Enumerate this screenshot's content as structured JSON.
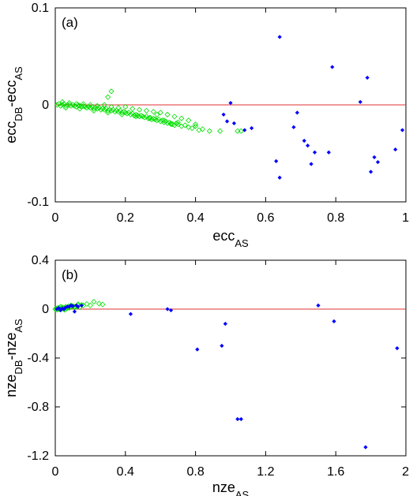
{
  "chart_data": [
    {
      "type": "scatter",
      "panel_label": "(a)",
      "xlabel": {
        "base": "ecc",
        "sub": "AS"
      },
      "ylabel": {
        "parts": [
          {
            "base": "ecc",
            "sub": "DB"
          },
          {
            "base": "-ecc",
            "sub": "AS"
          }
        ]
      },
      "xlim": [
        0,
        1
      ],
      "ylim": [
        -0.1,
        0.1
      ],
      "xticks": [
        0,
        0.2,
        0.4,
        0.6,
        0.8,
        1
      ],
      "xtick_labels": [
        "0",
        "0.2",
        "0.4",
        "0.6",
        "0.8",
        "1"
      ],
      "yticks": [
        -0.1,
        0,
        0.1
      ],
      "ytick_labels": [
        "-0.1",
        "0",
        "0.1"
      ],
      "reference_line_y": 0,
      "reference_color": "#e03030",
      "series": [
        {
          "color": "#00e000",
          "marker": "open-diamond",
          "x": [
            0.005,
            0.01,
            0.015,
            0.02,
            0.025,
            0.03,
            0.035,
            0.04,
            0.045,
            0.05,
            0.055,
            0.06,
            0.065,
            0.07,
            0.075,
            0.08,
            0.085,
            0.09,
            0.095,
            0.1,
            0.105,
            0.11,
            0.115,
            0.12,
            0.125,
            0.13,
            0.135,
            0.14,
            0.145,
            0.15,
            0.155,
            0.16,
            0.165,
            0.17,
            0.175,
            0.18,
            0.185,
            0.19,
            0.195,
            0.2,
            0.205,
            0.21,
            0.215,
            0.22,
            0.225,
            0.23,
            0.235,
            0.24,
            0.245,
            0.25,
            0.255,
            0.26,
            0.265,
            0.27,
            0.275,
            0.28,
            0.285,
            0.29,
            0.295,
            0.3,
            0.305,
            0.31,
            0.315,
            0.32,
            0.325,
            0.33,
            0.335,
            0.34,
            0.345,
            0.35,
            0.36,
            0.37,
            0.38,
            0.39,
            0.4,
            0.41,
            0.42,
            0.44,
            0.02,
            0.04,
            0.06,
            0.08,
            0.1,
            0.12,
            0.14,
            0.16,
            0.18,
            0.2,
            0.22,
            0.24,
            0.26,
            0.28,
            0.3,
            0.32,
            0.34,
            0.36,
            0.38,
            0.4,
            0.03,
            0.07,
            0.11,
            0.15,
            0.19,
            0.23,
            0.27,
            0.31,
            0.35,
            0.16,
            0.15,
            0.29,
            0.33,
            0.47,
            0.52,
            0.53
          ],
          "y": [
            0.0,
            0.001,
            -0.001,
            0.0,
            0.001,
            -0.001,
            0.0,
            0.0,
            -0.001,
            0.0,
            -0.001,
            -0.002,
            0.0,
            -0.001,
            -0.002,
            -0.001,
            -0.002,
            -0.003,
            -0.002,
            -0.003,
            -0.002,
            -0.004,
            -0.003,
            -0.004,
            -0.003,
            -0.005,
            -0.004,
            -0.005,
            -0.004,
            -0.006,
            -0.005,
            -0.006,
            -0.005,
            -0.007,
            -0.006,
            -0.007,
            -0.006,
            -0.008,
            -0.007,
            -0.008,
            -0.009,
            -0.008,
            -0.01,
            -0.009,
            -0.011,
            -0.01,
            -0.011,
            -0.012,
            -0.011,
            -0.012,
            -0.013,
            -0.012,
            -0.014,
            -0.013,
            -0.015,
            -0.014,
            -0.015,
            -0.016,
            -0.015,
            -0.017,
            -0.016,
            -0.018,
            -0.017,
            -0.019,
            -0.018,
            -0.019,
            -0.02,
            -0.021,
            -0.019,
            -0.02,
            -0.022,
            -0.021,
            -0.023,
            -0.024,
            -0.022,
            -0.026,
            -0.025,
            -0.027,
            0.003,
            0.002,
            0.001,
            0.001,
            0.0,
            -0.001,
            0.0,
            -0.002,
            -0.003,
            -0.002,
            -0.004,
            -0.005,
            -0.006,
            -0.007,
            -0.008,
            -0.01,
            -0.012,
            -0.014,
            -0.016,
            -0.02,
            -0.003,
            -0.004,
            -0.006,
            -0.008,
            -0.01,
            -0.012,
            -0.014,
            -0.016,
            -0.018,
            0.014,
            0.008,
            -0.01,
            -0.02,
            -0.027,
            -0.027,
            -0.027
          ]
        },
        {
          "color": "#0000ff",
          "marker": "filled-diamond",
          "x": [
            0.48,
            0.49,
            0.5,
            0.51,
            0.54,
            0.56,
            0.63,
            0.64,
            0.64,
            0.68,
            0.69,
            0.71,
            0.72,
            0.73,
            0.74,
            0.78,
            0.79,
            0.87,
            0.89,
            0.9,
            0.91,
            0.92,
            0.97,
            0.99
          ],
          "y": [
            -0.01,
            -0.017,
            0.002,
            -0.019,
            -0.026,
            -0.024,
            -0.058,
            0.07,
            -0.075,
            -0.023,
            -0.008,
            -0.037,
            -0.042,
            -0.061,
            -0.049,
            -0.049,
            0.039,
            0.003,
            0.028,
            -0.069,
            -0.054,
            -0.059,
            -0.046,
            -0.026
          ]
        }
      ]
    },
    {
      "type": "scatter",
      "panel_label": "(b)",
      "xlabel": {
        "base": "nze",
        "sub": "AS"
      },
      "ylabel": {
        "parts": [
          {
            "base": "nze",
            "sub": "DB"
          },
          {
            "base": "-nze",
            "sub": "AS"
          }
        ]
      },
      "xlim": [
        0,
        2
      ],
      "ylim": [
        -1.2,
        0.4
      ],
      "xticks": [
        0,
        0.4,
        0.8,
        1.2,
        1.6,
        2
      ],
      "xtick_labels": [
        "0",
        "0.4",
        "0.8",
        "1.2",
        "1.6",
        "2"
      ],
      "yticks": [
        -1.2,
        -0.8,
        -0.4,
        0,
        0.4
      ],
      "ytick_labels": [
        "-1.2",
        "-0.8",
        "-0.4",
        "0",
        "0.4"
      ],
      "reference_line_y": 0,
      "reference_color": "#e03030",
      "series": [
        {
          "color": "#00e000",
          "marker": "open-diamond",
          "x": [
            0.0,
            0.005,
            0.01,
            0.015,
            0.02,
            0.025,
            0.03,
            0.035,
            0.04,
            0.045,
            0.05,
            0.055,
            0.06,
            0.065,
            0.07,
            0.075,
            0.08,
            0.09,
            0.1,
            0.11,
            0.12,
            0.13,
            0.14,
            0.16,
            0.18,
            0.2,
            0.22,
            0.25,
            0.27,
            0.03,
            0.05,
            0.07,
            0.09,
            0.11,
            0.13,
            0.15
          ],
          "y": [
            0.0,
            0.005,
            -0.005,
            0.01,
            0.0,
            0.012,
            -0.003,
            0.008,
            0.015,
            0.002,
            0.01,
            -0.006,
            0.02,
            0.005,
            0.015,
            0.022,
            0.01,
            0.018,
            0.025,
            0.012,
            0.02,
            0.03,
            0.015,
            0.03,
            0.042,
            0.03,
            0.06,
            0.045,
            0.038,
            0.02,
            0.0,
            0.01,
            0.03,
            0.02,
            0.04,
            0.035
          ]
        },
        {
          "color": "#0000ff",
          "marker": "filled-diamond",
          "x": [
            0.01,
            0.02,
            0.03,
            0.04,
            0.05,
            0.06,
            0.07,
            0.08,
            0.09,
            0.1,
            0.11,
            0.12,
            0.13,
            0.15,
            0.43,
            0.64,
            0.66,
            0.81,
            0.95,
            0.97,
            1.04,
            1.06,
            1.5,
            1.59,
            1.77,
            1.95
          ],
          "y": [
            0.0,
            0.01,
            -0.01,
            0.005,
            0.0,
            0.015,
            0.02,
            0.02,
            0.03,
            0.025,
            -0.02,
            0.03,
            0.02,
            0.03,
            -0.04,
            0.0,
            -0.01,
            -0.33,
            -0.3,
            -0.12,
            -0.9,
            -0.9,
            0.03,
            -0.1,
            -1.13,
            -0.32
          ]
        }
      ]
    }
  ]
}
